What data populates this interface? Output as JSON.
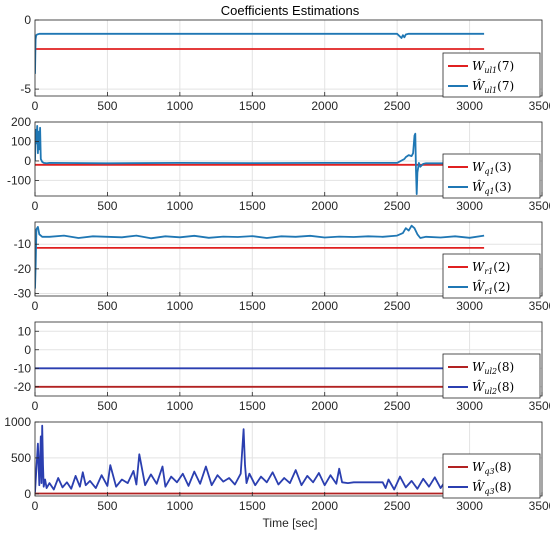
{
  "figure": {
    "title": "Coefficients Estimations",
    "xlabel": "Time [sec]"
  },
  "chart_data": [
    {
      "type": "line",
      "grid": true,
      "legend_position": "right",
      "xlim": [
        0,
        3500
      ],
      "xticks": [
        0,
        500,
        1000,
        1500,
        2000,
        2500,
        3000,
        3500
      ],
      "ylim": [
        -5.5,
        0
      ],
      "yticks": [
        0,
        -5
      ],
      "series": [
        {
          "name": "W_ul1(7)",
          "color": "#e02020",
          "x": [
            0,
            3100
          ],
          "y": [
            -2.1,
            -2.1
          ]
        },
        {
          "name": "Ŵ_ul1(7)",
          "color": "#1f77b4",
          "x": [
            0,
            2,
            4,
            8,
            15,
            30,
            2500,
            2530,
            2540,
            2550,
            2560,
            2580,
            2600,
            3100
          ],
          "y": [
            -3.9,
            -2.6,
            -1.4,
            -1.1,
            -1.05,
            -1.0,
            -1.0,
            -1.3,
            -1.1,
            -1.25,
            -1.05,
            -1.0,
            -1.0,
            -1.0
          ]
        }
      ]
    },
    {
      "type": "line",
      "grid": true,
      "legend_position": "right",
      "xlim": [
        0,
        3500
      ],
      "xticks": [
        0,
        500,
        1000,
        1500,
        2000,
        2500,
        3000,
        3500
      ],
      "ylim": [
        -180,
        200
      ],
      "yticks": [
        200,
        100,
        0,
        -100
      ],
      "series": [
        {
          "name": "W_q1(3)",
          "color": "#e02020",
          "x": [
            0,
            3100
          ],
          "y": [
            -20,
            -20
          ]
        },
        {
          "name": "Ŵ_q1(3)",
          "color": "#1f77b4",
          "x": [
            0,
            5,
            10,
            15,
            20,
            25,
            30,
            35,
            40,
            50,
            60,
            80,
            100,
            500,
            1000,
            1500,
            2000,
            2500,
            2550,
            2560,
            2580,
            2600,
            2610,
            2620,
            2625,
            2630,
            2635,
            2640,
            2650,
            2660,
            2680,
            2700,
            3100
          ],
          "y": [
            0,
            160,
            90,
            180,
            40,
            150,
            60,
            170,
            10,
            -5,
            -10,
            -12,
            -10,
            -12,
            -10,
            -11,
            -10,
            -10,
            10,
            20,
            30,
            25,
            40,
            130,
            140,
            -50,
            -170,
            -60,
            -10,
            -30,
            -15,
            -12,
            -12
          ]
        }
      ]
    },
    {
      "type": "line",
      "grid": true,
      "legend_position": "right",
      "xlim": [
        0,
        3500
      ],
      "xticks": [
        0,
        500,
        1000,
        1500,
        2000,
        2500,
        3000,
        3500
      ],
      "ylim": [
        -31,
        -1
      ],
      "yticks": [
        -10,
        -20,
        -30
      ],
      "series": [
        {
          "name": "W_r1(2)",
          "color": "#e02020",
          "x": [
            0,
            3100
          ],
          "y": [
            -11.5,
            -11.5
          ]
        },
        {
          "name": "Ŵ_r1(2)",
          "color": "#1f77b4",
          "x": [
            0,
            5,
            10,
            20,
            30,
            50,
            100,
            200,
            300,
            400,
            500,
            600,
            700,
            800,
            900,
            1000,
            1100,
            1200,
            1300,
            1400,
            1500,
            1600,
            1700,
            1800,
            1900,
            2000,
            2100,
            2200,
            2300,
            2400,
            2500,
            2540,
            2560,
            2580,
            2600,
            2620,
            2640,
            2660,
            2700,
            2800,
            2900,
            3000,
            3100
          ],
          "y": [
            -28,
            -18,
            -4,
            -3,
            -6,
            -7,
            -7,
            -6.5,
            -7.5,
            -6.8,
            -7,
            -7.2,
            -6.5,
            -7.6,
            -6.8,
            -7.2,
            -6.6,
            -7.4,
            -6.9,
            -7.1,
            -6.7,
            -7.5,
            -6.8,
            -7.0,
            -6.6,
            -7.3,
            -6.9,
            -7.1,
            -6.8,
            -7.0,
            -6.5,
            -5.5,
            -3.5,
            -4.5,
            -2.5,
            -3.5,
            -6,
            -7.5,
            -7.0,
            -7.3,
            -6.8,
            -7.4,
            -6.5
          ]
        }
      ]
    },
    {
      "type": "line",
      "grid": true,
      "legend_position": "right",
      "xlim": [
        0,
        3500
      ],
      "xticks": [
        0,
        500,
        1000,
        1500,
        2000,
        2500,
        3000,
        3500
      ],
      "ylim": [
        -25,
        15
      ],
      "yticks": [
        10,
        0,
        -10,
        -20
      ],
      "series": [
        {
          "name": "W_ul2(8)",
          "color": "#b22222",
          "x": [
            0,
            3100
          ],
          "y": [
            -20,
            -20
          ]
        },
        {
          "name": "Ŵ_ul2(8)",
          "color": "#2b3fb0",
          "x": [
            0,
            3100
          ],
          "y": [
            -10,
            -10
          ]
        }
      ]
    },
    {
      "type": "line",
      "grid": true,
      "legend_position": "right",
      "xlim": [
        0,
        3500
      ],
      "xticks": [
        0,
        500,
        1000,
        1500,
        2000,
        2500,
        3000,
        3500
      ],
      "ylim": [
        -30,
        1000
      ],
      "yticks": [
        1000,
        500,
        0
      ],
      "series": [
        {
          "name": "W_q3(8)",
          "color": "#b22222",
          "x": [
            0,
            3100
          ],
          "y": [
            5,
            5
          ]
        },
        {
          "name": "Ŵ_q3(8)",
          "color": "#2b3fb0",
          "x": [
            0,
            20,
            30,
            40,
            45,
            50,
            55,
            60,
            70,
            80,
            100,
            130,
            160,
            190,
            220,
            250,
            280,
            310,
            330,
            350,
            380,
            420,
            460,
            500,
            520,
            560,
            600,
            640,
            680,
            700,
            720,
            760,
            800,
            840,
            880,
            900,
            940,
            980,
            1020,
            1060,
            1100,
            1140,
            1180,
            1220,
            1260,
            1300,
            1340,
            1380,
            1420,
            1440,
            1450,
            1460,
            1480,
            1520,
            1560,
            1600,
            1640,
            1680,
            1720,
            1760,
            1800,
            1840,
            1880,
            1920,
            1960,
            2000,
            2040,
            2080,
            2100,
            2120,
            2160,
            2200,
            2210,
            2400,
            2420,
            2440,
            2480,
            2520,
            2560,
            2600,
            2640,
            2680,
            2720,
            2760,
            2800,
            2840,
            2880,
            2920,
            2960,
            3000,
            3040,
            3080,
            3100
          ],
          "y": [
            20,
            700,
            120,
            800,
            150,
            950,
            400,
            100,
            200,
            80,
            150,
            60,
            220,
            90,
            160,
            70,
            250,
            100,
            300,
            120,
            180,
            80,
            260,
            110,
            400,
            100,
            200,
            150,
            320,
            130,
            550,
            120,
            270,
            140,
            380,
            100,
            240,
            160,
            280,
            110,
            310,
            140,
            380,
            120,
            260,
            170,
            220,
            130,
            280,
            900,
            400,
            150,
            280,
            120,
            240,
            160,
            300,
            130,
            220,
            150,
            330,
            120,
            250,
            160,
            290,
            120,
            260,
            140,
            350,
            160,
            150,
            160,
            160,
            160,
            80,
            200,
            60,
            240,
            90,
            180,
            70,
            210,
            100,
            230,
            80,
            200,
            90,
            170,
            110,
            220,
            60,
            150,
            100
          ]
        }
      ]
    }
  ]
}
